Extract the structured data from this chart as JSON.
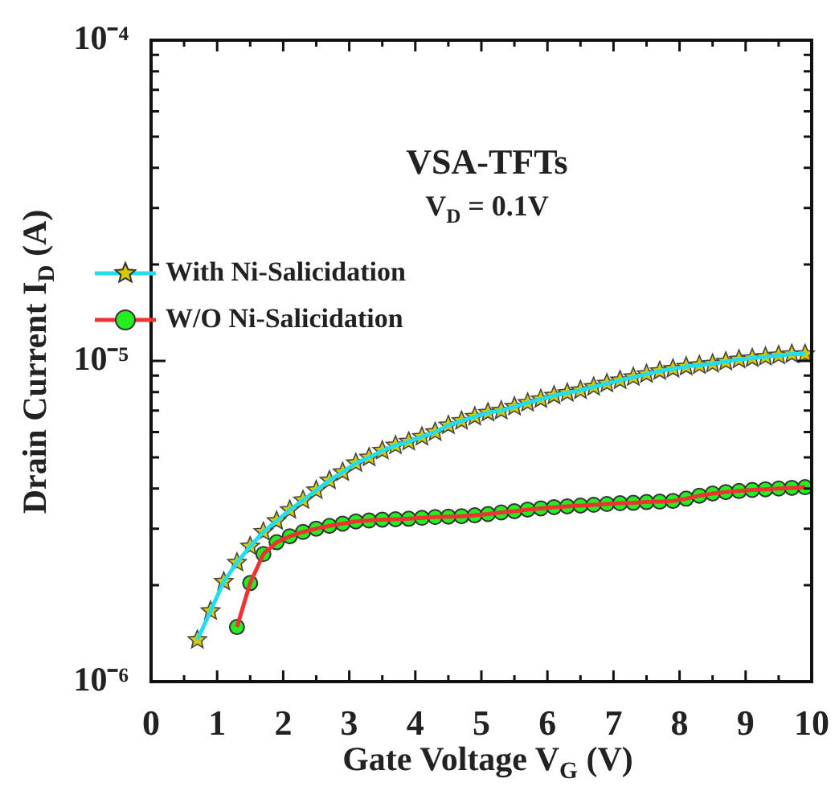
{
  "chart_data": {
    "type": "line",
    "annotations": [
      "VSA-TFTs",
      "V$_{D}$ = 0.1V"
    ],
    "xlabel": "Gate Voltage V$_{G}$ (V)",
    "ylabel": "Drain Current I$_{D}$ (A)",
    "log": "y",
    "grid": false,
    "legend": "top left",
    "line_style": "solid",
    "xlim": [
      0,
      10
    ],
    "xticks": [
      0,
      {
        "value": 0.5,
        "label": null
      },
      1,
      {
        "value": 1.5,
        "label": null
      },
      2,
      {
        "value": 2.5,
        "label": null
      },
      3,
      {
        "value": 3.5,
        "label": null
      },
      4,
      {
        "value": 4.5,
        "label": null
      },
      5,
      {
        "value": 5.5,
        "label": null
      },
      6,
      {
        "value": 6.5,
        "label": null
      },
      7,
      {
        "value": 7.5,
        "label": null
      },
      8,
      {
        "value": 8.5,
        "label": null
      },
      9,
      {
        "value": 9.5,
        "label": null
      },
      10
    ],
    "ylim": [
      1e-06,
      0.0001
    ],
    "yticks": [
      {
        "value": 1e-06,
        "label": "10⁻⁶"
      },
      {
        "value": 2e-06,
        "label": null
      },
      {
        "value": 3e-06,
        "label": null
      },
      {
        "value": 4e-06,
        "label": null
      },
      {
        "value": 5e-06,
        "label": null
      },
      {
        "value": 6e-06,
        "label": null
      },
      {
        "value": 7e-06,
        "label": null
      },
      {
        "value": 8e-06,
        "label": null
      },
      {
        "value": 9e-06,
        "label": null
      },
      {
        "value": 1e-05,
        "label": "10⁻⁵"
      },
      {
        "value": 2e-05,
        "label": null
      },
      {
        "value": 3e-05,
        "label": null
      },
      {
        "value": 4e-05,
        "label": null
      },
      {
        "value": 5e-05,
        "label": null
      },
      {
        "value": 6e-05,
        "label": null
      },
      {
        "value": 7e-05,
        "label": null
      },
      {
        "value": 8e-05,
        "label": null
      },
      {
        "value": 9e-05,
        "label": null
      },
      {
        "value": 0.0001,
        "label": "10⁻⁴"
      }
    ],
    "series": [
      {
        "type": "line",
        "color": "#22ddee",
        "marker": "none",
        "x": [
          0.7,
          0.9,
          1.1,
          1.3,
          1.5,
          1.7,
          1.9,
          2.1,
          2.3,
          2.5,
          2.7,
          2.9,
          3.1,
          3.3,
          3.5,
          3.7,
          3.9,
          4.1,
          4.3,
          4.5,
          4.7,
          4.9,
          5.1,
          5.3,
          5.5,
          5.7,
          5.9,
          6.1,
          6.3,
          6.5,
          6.7,
          6.9,
          7.1,
          7.3,
          7.5,
          7.7,
          7.9,
          8.1,
          8.3,
          8.5,
          8.7,
          8.9,
          9.1,
          9.3,
          9.5,
          9.7,
          9.9
        ],
        "values": [
          1.35e-06,
          1.66e-06,
          2.05e-06,
          2.35e-06,
          2.64e-06,
          2.93e-06,
          3.17e-06,
          3.43e-06,
          3.68e-06,
          3.95e-06,
          4.24e-06,
          4.5e-06,
          4.8e-06,
          5e-06,
          5.25e-06,
          5.45e-06,
          5.6e-06,
          5.8e-06,
          6e-06,
          6.3e-06,
          6.5e-06,
          6.7e-06,
          6.9e-06,
          7e-06,
          7.2e-06,
          7.4e-06,
          7.6e-06,
          7.8e-06,
          7.95e-06,
          8.1e-06,
          8.3e-06,
          8.5e-06,
          8.7e-06,
          8.9e-06,
          9.1e-06,
          9.3e-06,
          9.45e-06,
          9.6e-06,
          9.7e-06,
          9.8e-06,
          9.95e-06,
          1.01e-05,
          1.02e-05,
          1.03e-05,
          1.04e-05,
          1.05e-05,
          1.05e-05
        ]
      },
      {
        "type": "line",
        "color": "#ee3333",
        "marker": "none",
        "x": [
          1.3,
          1.5,
          1.7,
          1.9,
          2.1,
          2.3,
          2.5,
          2.7,
          2.9,
          3.1,
          3.3,
          3.5,
          3.7,
          3.9,
          4.1,
          4.3,
          4.5,
          4.7,
          4.9,
          5.1,
          5.3,
          5.5,
          5.7,
          5.9,
          6.1,
          6.3,
          6.5,
          6.7,
          6.9,
          7.1,
          7.3,
          7.5,
          7.7,
          7.9,
          8.1,
          8.3,
          8.5,
          8.7,
          8.9,
          9.1,
          9.3,
          9.5,
          9.7,
          9.9
        ],
        "values": [
          1.48e-06,
          2.03e-06,
          2.5e-06,
          2.72e-06,
          2.84e-06,
          2.93e-06,
          3e-06,
          3.06e-06,
          3.11e-06,
          3.16e-06,
          3.18e-06,
          3.2e-06,
          3.21e-06,
          3.22e-06,
          3.24e-06,
          3.26e-06,
          3.27e-06,
          3.28e-06,
          3.3e-06,
          3.33e-06,
          3.37e-06,
          3.4e-06,
          3.44e-06,
          3.47e-06,
          3.5e-06,
          3.52e-06,
          3.54e-06,
          3.56e-06,
          3.58e-06,
          3.6e-06,
          3.61e-06,
          3.63e-06,
          3.64e-06,
          3.66e-06,
          3.72e-06,
          3.8e-06,
          3.86e-06,
          3.9e-06,
          3.93e-06,
          3.96e-06,
          3.98e-06,
          4e-06,
          4.02e-06,
          4.04e-06
        ]
      },
      {
        "type": "scatter",
        "name": "With Ni-Salicidation",
        "color": "#d8c800",
        "marker": "star",
        "x": [
          0.7,
          0.9,
          1.1,
          1.3,
          1.5,
          1.7,
          1.9,
          2.1,
          2.3,
          2.5,
          2.7,
          2.9,
          3.1,
          3.3,
          3.5,
          3.7,
          3.9,
          4.1,
          4.3,
          4.5,
          4.7,
          4.9,
          5.1,
          5.3,
          5.5,
          5.7,
          5.9,
          6.1,
          6.3,
          6.5,
          6.7,
          6.9,
          7.1,
          7.3,
          7.5,
          7.7,
          7.9,
          8.1,
          8.3,
          8.5,
          8.7,
          8.9,
          9.1,
          9.3,
          9.5,
          9.7,
          9.9
        ],
        "values": [
          1.35e-06,
          1.66e-06,
          2.05e-06,
          2.35e-06,
          2.64e-06,
          2.93e-06,
          3.17e-06,
          3.43e-06,
          3.68e-06,
          3.95e-06,
          4.24e-06,
          4.5e-06,
          4.8e-06,
          5e-06,
          5.25e-06,
          5.45e-06,
          5.6e-06,
          5.8e-06,
          6e-06,
          6.3e-06,
          6.5e-06,
          6.7e-06,
          6.9e-06,
          7e-06,
          7.2e-06,
          7.4e-06,
          7.6e-06,
          7.8e-06,
          7.95e-06,
          8.1e-06,
          8.3e-06,
          8.5e-06,
          8.7e-06,
          8.9e-06,
          9.1e-06,
          9.3e-06,
          9.45e-06,
          9.6e-06,
          9.7e-06,
          9.8e-06,
          9.95e-06,
          1.01e-05,
          1.02e-05,
          1.03e-05,
          1.04e-05,
          1.05e-05,
          1.05e-05
        ]
      },
      {
        "type": "scatter",
        "name": "W/O Ni-Salicidation",
        "color": "#22ee22",
        "marker": "circle",
        "x": [
          1.3,
          1.5,
          1.7,
          1.9,
          2.1,
          2.3,
          2.5,
          2.7,
          2.9,
          3.1,
          3.3,
          3.5,
          3.7,
          3.9,
          4.1,
          4.3,
          4.5,
          4.7,
          4.9,
          5.1,
          5.3,
          5.5,
          5.7,
          5.9,
          6.1,
          6.3,
          6.5,
          6.7,
          6.9,
          7.1,
          7.3,
          7.5,
          7.7,
          7.9,
          8.1,
          8.3,
          8.5,
          8.7,
          8.9,
          9.1,
          9.3,
          9.5,
          9.7,
          9.9
        ],
        "values": [
          1.48e-06,
          2.03e-06,
          2.5e-06,
          2.72e-06,
          2.84e-06,
          2.93e-06,
          3e-06,
          3.06e-06,
          3.11e-06,
          3.16e-06,
          3.18e-06,
          3.2e-06,
          3.21e-06,
          3.22e-06,
          3.24e-06,
          3.26e-06,
          3.27e-06,
          3.28e-06,
          3.3e-06,
          3.33e-06,
          3.37e-06,
          3.4e-06,
          3.44e-06,
          3.47e-06,
          3.5e-06,
          3.52e-06,
          3.54e-06,
          3.56e-06,
          3.58e-06,
          3.6e-06,
          3.61e-06,
          3.63e-06,
          3.64e-06,
          3.66e-06,
          3.72e-06,
          3.8e-06,
          3.86e-06,
          3.9e-06,
          3.93e-06,
          3.96e-06,
          3.98e-06,
          4e-06,
          4.02e-06,
          4.04e-06
        ]
      }
    ]
  }
}
